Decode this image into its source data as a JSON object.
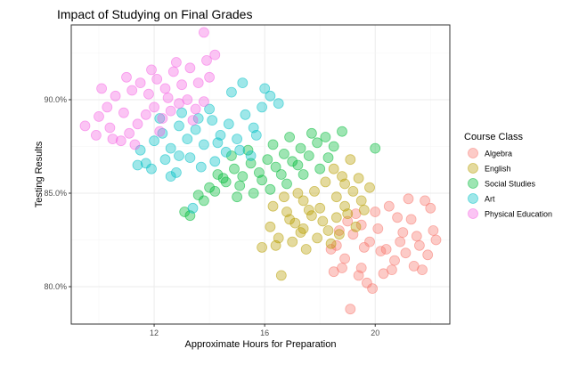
{
  "chart_data": {
    "type": "scatter",
    "title": "Impact of Studying on Final Grades",
    "xlabel": "Approximate Hours for Preparation",
    "ylabel": "Testing Results",
    "xlim": [
      9.0,
      22.7
    ],
    "ylim": [
      78.0,
      94.0
    ],
    "x_ticks": [
      12,
      16,
      20
    ],
    "x_tick_labels": [
      "12",
      "16",
      "20"
    ],
    "y_ticks": [
      80,
      85,
      90
    ],
    "y_tick_labels": [
      "80.0%",
      "85.0%",
      "90.0%"
    ],
    "grid": true,
    "legend_title": "Course Class",
    "legend_position": "right",
    "series": [
      {
        "name": "Algebra",
        "color": "#F8766D",
        "points": [
          [
            18.6,
            82.2
          ],
          [
            18.9,
            81.5
          ],
          [
            19.2,
            82.8
          ],
          [
            19.5,
            81.0
          ],
          [
            19.8,
            82.4
          ],
          [
            20.1,
            83.1
          ],
          [
            20.4,
            82.0
          ],
          [
            20.7,
            81.4
          ],
          [
            21.0,
            82.9
          ],
          [
            21.3,
            83.6
          ],
          [
            21.6,
            82.2
          ],
          [
            21.9,
            81.7
          ],
          [
            22.1,
            83.0
          ],
          [
            20.0,
            84.0
          ],
          [
            20.5,
            84.3
          ],
          [
            21.2,
            84.7
          ],
          [
            21.8,
            84.6
          ],
          [
            19.4,
            80.6
          ],
          [
            19.7,
            80.2
          ],
          [
            19.1,
            78.8
          ],
          [
            18.5,
            80.8
          ],
          [
            20.3,
            80.7
          ],
          [
            21.4,
            81.1
          ],
          [
            19.0,
            83.5
          ],
          [
            18.8,
            81.0
          ],
          [
            19.3,
            83.9
          ],
          [
            20.8,
            83.7
          ],
          [
            21.7,
            80.9
          ],
          [
            22.2,
            82.5
          ],
          [
            20.2,
            81.9
          ],
          [
            19.6,
            82.1
          ],
          [
            21.1,
            81.8
          ],
          [
            18.7,
            83.0
          ],
          [
            20.6,
            80.9
          ],
          [
            19.9,
            79.9
          ],
          [
            21.5,
            82.7
          ],
          [
            22.0,
            84.2
          ],
          [
            20.9,
            82.4
          ],
          [
            19.5,
            83.3
          ],
          [
            18.4,
            82.0
          ]
        ]
      },
      {
        "name": "English",
        "color": "#B79F00",
        "points": [
          [
            16.2,
            83.2
          ],
          [
            16.5,
            82.6
          ],
          [
            16.8,
            84.0
          ],
          [
            17.1,
            83.4
          ],
          [
            17.4,
            84.6
          ],
          [
            17.7,
            83.8
          ],
          [
            18.0,
            84.2
          ],
          [
            18.3,
            83.0
          ],
          [
            18.6,
            84.8
          ],
          [
            18.9,
            84.3
          ],
          [
            19.2,
            85.1
          ],
          [
            19.5,
            84.6
          ],
          [
            19.8,
            85.3
          ],
          [
            17.0,
            82.4
          ],
          [
            17.5,
            82.0
          ],
          [
            16.4,
            82.2
          ],
          [
            15.9,
            82.1
          ],
          [
            16.6,
            80.6
          ],
          [
            18.2,
            85.6
          ],
          [
            18.8,
            85.9
          ],
          [
            19.4,
            85.8
          ],
          [
            17.8,
            85.1
          ],
          [
            17.2,
            85.0
          ],
          [
            18.5,
            86.3
          ],
          [
            19.1,
            86.8
          ],
          [
            16.7,
            84.8
          ],
          [
            17.6,
            84.1
          ],
          [
            18.1,
            83.5
          ],
          [
            18.7,
            82.8
          ],
          [
            19.0,
            83.9
          ],
          [
            16.9,
            83.6
          ],
          [
            17.3,
            82.9
          ],
          [
            18.4,
            82.3
          ],
          [
            19.6,
            84.1
          ],
          [
            16.3,
            84.3
          ],
          [
            17.9,
            82.6
          ],
          [
            18.9,
            85.5
          ],
          [
            19.3,
            83.2
          ],
          [
            17.4,
            83.1
          ],
          [
            18.6,
            83.7
          ]
        ]
      },
      {
        "name": "Social Studies",
        "color": "#00BA38",
        "points": [
          [
            14.0,
            85.3
          ],
          [
            14.3,
            86.0
          ],
          [
            14.6,
            85.6
          ],
          [
            14.9,
            86.3
          ],
          [
            15.2,
            85.9
          ],
          [
            15.5,
            86.6
          ],
          [
            15.8,
            86.1
          ],
          [
            16.1,
            86.8
          ],
          [
            16.4,
            86.4
          ],
          [
            16.7,
            87.1
          ],
          [
            17.0,
            86.7
          ],
          [
            17.3,
            87.4
          ],
          [
            17.6,
            87.0
          ],
          [
            17.9,
            87.7
          ],
          [
            18.2,
            88.0
          ],
          [
            18.5,
            87.5
          ],
          [
            13.6,
            84.9
          ],
          [
            13.8,
            84.6
          ],
          [
            14.2,
            85.1
          ],
          [
            15.0,
            84.8
          ],
          [
            15.6,
            85.0
          ],
          [
            16.2,
            85.2
          ],
          [
            16.8,
            85.5
          ],
          [
            17.4,
            86.0
          ],
          [
            18.0,
            86.3
          ],
          [
            17.7,
            88.2
          ],
          [
            16.9,
            88.0
          ],
          [
            16.3,
            87.6
          ],
          [
            15.4,
            87.3
          ],
          [
            14.8,
            87.0
          ],
          [
            13.1,
            84.0
          ],
          [
            13.3,
            83.8
          ],
          [
            14.5,
            85.8
          ],
          [
            15.9,
            85.7
          ],
          [
            16.6,
            86.0
          ],
          [
            17.2,
            86.5
          ],
          [
            18.3,
            86.9
          ],
          [
            18.8,
            88.3
          ],
          [
            20.0,
            87.4
          ],
          [
            15.1,
            85.4
          ]
        ]
      },
      {
        "name": "Art",
        "color": "#00BFC4",
        "points": [
          [
            12.0,
            87.8
          ],
          [
            12.3,
            88.2
          ],
          [
            12.6,
            87.4
          ],
          [
            12.9,
            88.6
          ],
          [
            13.2,
            87.9
          ],
          [
            13.5,
            88.4
          ],
          [
            13.8,
            87.6
          ],
          [
            14.1,
            88.9
          ],
          [
            14.4,
            88.1
          ],
          [
            14.7,
            88.7
          ],
          [
            15.0,
            87.9
          ],
          [
            15.3,
            89.2
          ],
          [
            15.6,
            88.5
          ],
          [
            15.9,
            89.6
          ],
          [
            16.2,
            90.2
          ],
          [
            16.5,
            89.8
          ],
          [
            11.7,
            86.6
          ],
          [
            11.9,
            86.3
          ],
          [
            12.4,
            86.8
          ],
          [
            12.8,
            86.1
          ],
          [
            13.3,
            86.9
          ],
          [
            13.7,
            86.4
          ],
          [
            14.2,
            86.7
          ],
          [
            14.6,
            87.2
          ],
          [
            15.1,
            87.3
          ],
          [
            15.5,
            87.0
          ],
          [
            11.5,
            87.3
          ],
          [
            12.2,
            89.0
          ],
          [
            13.0,
            89.3
          ],
          [
            13.6,
            89.0
          ],
          [
            14.0,
            89.5
          ],
          [
            14.8,
            90.4
          ],
          [
            16.0,
            90.6
          ],
          [
            15.2,
            90.9
          ],
          [
            12.6,
            85.9
          ],
          [
            13.4,
            84.2
          ],
          [
            11.4,
            86.5
          ],
          [
            12.9,
            87.0
          ],
          [
            14.3,
            87.7
          ],
          [
            15.7,
            88.1
          ]
        ]
      },
      {
        "name": "Physical Education",
        "color": "#F564E3",
        "points": [
          [
            10.0,
            89.1
          ],
          [
            10.3,
            89.6
          ],
          [
            10.6,
            90.2
          ],
          [
            10.9,
            89.3
          ],
          [
            11.2,
            90.5
          ],
          [
            11.5,
            90.9
          ],
          [
            11.8,
            90.3
          ],
          [
            12.1,
            91.1
          ],
          [
            12.4,
            90.6
          ],
          [
            12.7,
            91.5
          ],
          [
            13.0,
            90.8
          ],
          [
            13.3,
            91.7
          ],
          [
            13.6,
            90.9
          ],
          [
            13.9,
            92.1
          ],
          [
            14.2,
            92.4
          ],
          [
            13.8,
            93.6
          ],
          [
            9.5,
            88.6
          ],
          [
            9.9,
            88.1
          ],
          [
            10.4,
            88.5
          ],
          [
            10.8,
            87.8
          ],
          [
            11.1,
            88.2
          ],
          [
            11.4,
            88.7
          ],
          [
            11.7,
            89.2
          ],
          [
            12.0,
            89.6
          ],
          [
            12.3,
            89.0
          ],
          [
            12.6,
            89.4
          ],
          [
            12.9,
            89.8
          ],
          [
            13.2,
            90.0
          ],
          [
            13.5,
            89.5
          ],
          [
            13.8,
            89.9
          ],
          [
            10.1,
            90.6
          ],
          [
            11.0,
            91.2
          ],
          [
            11.9,
            91.6
          ],
          [
            12.8,
            92.0
          ],
          [
            10.5,
            87.9
          ],
          [
            11.3,
            87.6
          ],
          [
            12.2,
            88.3
          ],
          [
            13.4,
            88.9
          ],
          [
            14.0,
            91.2
          ],
          [
            12.5,
            90.1
          ]
        ]
      }
    ]
  }
}
